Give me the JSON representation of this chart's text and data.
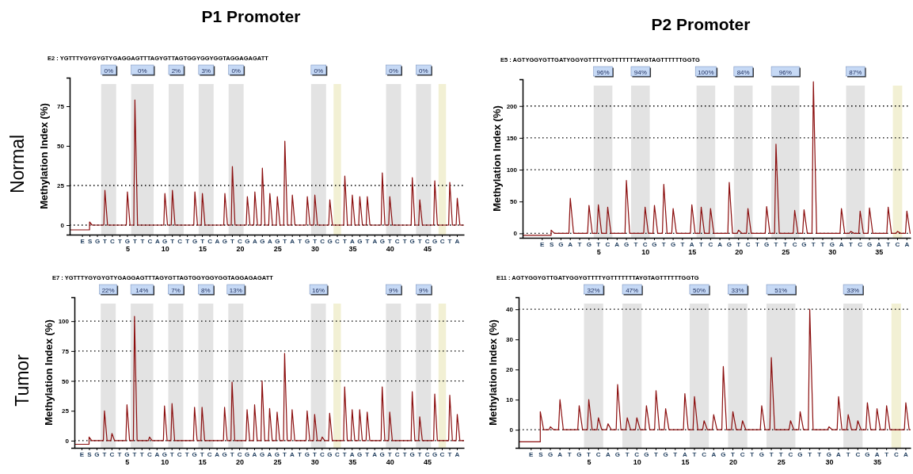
{
  "chart_data": [
    {
      "type": "line",
      "title": "P1 Promoter",
      "subtitle": "E2 : YGTTTYGYGYGTYGAGGAGTTTAGYGTTAGTGGYGGYGGTAGGAGAGATT",
      "ylabel": "Methylation Index (%)",
      "annotations": [
        "E S G T C T G T T C A G T C T G T C A G T C G A G A G T A T G T C G C T A G T A G T C T G T C G C T A",
        "Normal"
      ],
      "xlim": [
        -2.7,
        49.9
      ],
      "ylim": [
        -6,
        93
      ],
      "yticks": [
        0,
        25,
        50,
        75
      ],
      "xticks": [
        5,
        10,
        15,
        20,
        25,
        30,
        35,
        40,
        45
      ],
      "bands": [
        {
          "axis": "x",
          "from": 1.5,
          "to": 3.5,
          "label": "0%",
          "color": "#e3e3e3"
        },
        {
          "axis": "x",
          "from": 5.5,
          "to": 8.5,
          "label": "0%",
          "color": "#e3e3e3"
        },
        {
          "axis": "x",
          "from": 10.5,
          "to": 12.5,
          "label": "2%",
          "color": "#e3e3e3"
        },
        {
          "axis": "x",
          "from": 14.5,
          "to": 16.5,
          "label": "3%",
          "color": "#e3e3e3"
        },
        {
          "axis": "x",
          "from": 18.5,
          "to": 20.5,
          "label": "0%",
          "color": "#e3e3e3"
        },
        {
          "axis": "x",
          "from": 29.5,
          "to": 31.5,
          "label": "0%",
          "color": "#e3e3e3"
        },
        {
          "axis": "x",
          "from": 32.5,
          "to": 33.5,
          "color": "#f2f0d4"
        },
        {
          "axis": "x",
          "from": 39.5,
          "to": 41.5,
          "label": "0%",
          "color": "#e3e3e3"
        },
        {
          "axis": "x",
          "from": 43.5,
          "to": 45.5,
          "label": "0%",
          "color": "#e3e3e3"
        },
        {
          "axis": "x",
          "from": 46.5,
          "to": 47.5,
          "color": "#f2f0d4"
        }
      ],
      "ref_lines": [
        {
          "axis": "y",
          "value": 0,
          "color": "#000000",
          "line_style": "dotted"
        },
        {
          "axis": "y",
          "value": 25,
          "color": "#000000",
          "line_style": "dotted"
        }
      ],
      "series": [
        {
          "color": "#8b0e0e",
          "x": [
            -2.7,
            -0.05,
            -0.05,
            0.3,
            1.85,
            2,
            2.35,
            4.85,
            5,
            5.35,
            5.85,
            6,
            6.35,
            9.85,
            10,
            10.35,
            10.85,
            11,
            11.35,
            13.85,
            14,
            14.35,
            14.85,
            15,
            15.35,
            17.85,
            18,
            18.35,
            18.85,
            19,
            19.35,
            20.85,
            21,
            21.35,
            21.85,
            22,
            22.35,
            22.85,
            23,
            23.35,
            23.85,
            24,
            24.35,
            24.85,
            25,
            25.35,
            25.85,
            26,
            26.35,
            26.85,
            27,
            27.35,
            28.85,
            29,
            29.35,
            29.85,
            30,
            30.35,
            31.85,
            32,
            32.35,
            33.85,
            34,
            34.35,
            34.85,
            35,
            35.35,
            35.85,
            36,
            36.35,
            36.85,
            37,
            37.35,
            38.85,
            39,
            39.35,
            39.85,
            40,
            40.35,
            42.85,
            43,
            43.35,
            43.85,
            44,
            44.35,
            45.85,
            46,
            46.35,
            47.85,
            48,
            48.35,
            48.85,
            49,
            49.35,
            49.9
          ],
          "values": [
            -3,
            -3,
            2,
            0,
            0,
            22,
            0,
            0,
            21,
            0,
            0,
            79,
            0,
            0,
            20,
            0,
            0,
            22,
            0,
            0,
            21,
            0,
            0,
            20,
            0,
            0,
            20,
            0,
            0,
            37,
            0,
            0,
            18,
            0,
            0,
            21,
            0,
            0,
            36,
            0,
            0,
            20,
            0,
            0,
            18,
            0,
            0,
            53,
            0,
            0,
            19,
            0,
            0,
            18,
            0,
            0,
            19,
            0,
            0,
            16,
            0,
            0,
            31,
            0,
            0,
            19,
            0,
            0,
            18,
            0,
            0,
            18,
            0,
            0,
            33,
            0,
            0,
            18,
            0,
            0,
            30,
            0,
            0,
            16,
            0,
            0,
            28,
            0,
            0,
            27,
            0,
            0,
            17,
            0,
            0
          ]
        }
      ]
    },
    {
      "type": "line",
      "title": "P2 Promoter",
      "subtitle": "E5 : AGTYGGYGTTGATYGGYGTTTTYGTTTTTTTAYGTAGTTTTTTGGTG",
      "ylabel": "Methylation Index (%)",
      "annotations": [
        "E S G A T G T C A G T C G T G T A T C A G T C T G T T C G T T G A T C G A T C A"
      ],
      "xlim": [
        -3.1,
        38.4
      ],
      "ylim": [
        -7,
        242
      ],
      "yticks": [
        0,
        50,
        100,
        150,
        200
      ],
      "xticks": [
        5,
        10,
        15,
        20,
        25,
        30,
        35
      ],
      "bands": [
        {
          "axis": "x",
          "from": 4.5,
          "to": 6.5,
          "label": "96%",
          "color": "#e3e3e3"
        },
        {
          "axis": "x",
          "from": 8.5,
          "to": 10.5,
          "label": "94%",
          "color": "#e3e3e3"
        },
        {
          "axis": "x",
          "from": 15.5,
          "to": 17.5,
          "label": "100%",
          "color": "#e3e3e3"
        },
        {
          "axis": "x",
          "from": 19.5,
          "to": 21.5,
          "label": "84%",
          "color": "#e3e3e3"
        },
        {
          "axis": "x",
          "from": 23.5,
          "to": 26.5,
          "label": "96%",
          "color": "#e3e3e3"
        },
        {
          "axis": "x",
          "from": 31.5,
          "to": 33.5,
          "label": "87%",
          "color": "#e3e3e3"
        },
        {
          "axis": "x",
          "from": 36.5,
          "to": 37.5,
          "color": "#f2f0d4"
        }
      ],
      "ref_lines": [
        {
          "axis": "y",
          "value": 0,
          "color": "#000000",
          "line_style": "dotted"
        },
        {
          "axis": "y",
          "value": 100,
          "color": "#000000",
          "line_style": "dotted"
        },
        {
          "axis": "y",
          "value": 150,
          "color": "#000000",
          "line_style": "dotted"
        },
        {
          "axis": "y",
          "value": 200,
          "color": "#000000",
          "line_style": "dotted"
        }
      ],
      "series": [
        {
          "color": "#8b0e0e",
          "x": [
            -3.1,
            -0.05,
            -0.05,
            0.3,
            1.85,
            2,
            2.35,
            3.85,
            4,
            4.35,
            4.85,
            5,
            5.35,
            5.85,
            6,
            6.35,
            7.85,
            8,
            8.35,
            9.85,
            10,
            10.35,
            10.85,
            11,
            11.35,
            11.85,
            12,
            12.35,
            12.85,
            13,
            13.35,
            14.85,
            15,
            15.35,
            15.85,
            16,
            16.35,
            16.85,
            17,
            17.35,
            18.85,
            19,
            19.35,
            19.85,
            20,
            20.35,
            20.85,
            21,
            21.35,
            22.85,
            23,
            23.35,
            23.85,
            24,
            24.35,
            25.85,
            26,
            26.35,
            26.85,
            27,
            27.35,
            27.85,
            28,
            28.35,
            30.85,
            31,
            31.35,
            31.85,
            32,
            32.35,
            32.85,
            33,
            33.35,
            33.85,
            34,
            34.35,
            35.85,
            36,
            36.35,
            36.85,
            37,
            37.35,
            37.85,
            38,
            38.35,
            38.4
          ],
          "values": [
            -3,
            -3,
            5,
            0,
            0,
            55,
            0,
            0,
            44,
            0,
            0,
            45,
            0,
            0,
            41,
            0,
            0,
            83,
            0,
            0,
            41,
            0,
            0,
            44,
            0,
            0,
            77,
            0,
            0,
            39,
            0,
            0,
            45,
            0,
            0,
            41,
            0,
            0,
            39,
            0,
            0,
            80,
            0,
            0,
            5,
            0,
            0,
            39,
            0,
            0,
            42,
            0,
            0,
            140,
            0,
            0,
            36,
            0,
            0,
            37,
            0,
            0,
            238,
            0,
            0,
            39,
            0,
            0,
            3,
            0,
            0,
            35,
            0,
            0,
            40,
            0,
            0,
            41,
            0,
            0,
            3,
            0,
            0,
            35,
            0,
            0
          ]
        }
      ]
    },
    {
      "type": "line",
      "subtitle": "E7 : YGTTTYGYGYGTYGAGGAGTTTAGYGTTAGTGGYGGYGGTAGGAGAGATT",
      "ylabel": "Methylation Index (%)",
      "annotations": [
        "E S G T C T G T T C A G T C T G T C A G T C G A G A G T A T G T C G C T A G T A G T C T G T C G C T A",
        "Tumor"
      ],
      "xlim": [
        -2,
        49.9
      ],
      "ylim": [
        -6,
        120
      ],
      "yticks": [
        0,
        25,
        50,
        75,
        100
      ],
      "xticks": [
        5,
        10,
        15,
        20,
        25,
        30,
        35,
        40,
        45
      ],
      "bands": [
        {
          "axis": "x",
          "from": 1.5,
          "to": 3.5,
          "label": "22%",
          "color": "#e3e3e3"
        },
        {
          "axis": "x",
          "from": 5.5,
          "to": 8.5,
          "label": "14%",
          "color": "#e3e3e3"
        },
        {
          "axis": "x",
          "from": 10.5,
          "to": 12.5,
          "label": "7%",
          "color": "#e3e3e3"
        },
        {
          "axis": "x",
          "from": 14.5,
          "to": 16.5,
          "label": "8%",
          "color": "#e3e3e3"
        },
        {
          "axis": "x",
          "from": 18.5,
          "to": 20.5,
          "label": "13%",
          "color": "#e3e3e3"
        },
        {
          "axis": "x",
          "from": 29.5,
          "to": 31.5,
          "label": "16%",
          "color": "#e3e3e3"
        },
        {
          "axis": "x",
          "from": 32.5,
          "to": 33.5,
          "color": "#f2f0d4"
        },
        {
          "axis": "x",
          "from": 39.5,
          "to": 41.5,
          "label": "9%",
          "color": "#e3e3e3"
        },
        {
          "axis": "x",
          "from": 43.5,
          "to": 45.5,
          "label": "9%",
          "color": "#e3e3e3"
        },
        {
          "axis": "x",
          "from": 46.5,
          "to": 47.5,
          "color": "#f2f0d4"
        }
      ],
      "ref_lines": [
        {
          "axis": "y",
          "value": 0,
          "color": "#000000",
          "line_style": "dotted"
        },
        {
          "axis": "y",
          "value": 50,
          "color": "#000000",
          "line_style": "dotted"
        },
        {
          "axis": "y",
          "value": 75,
          "color": "#000000",
          "line_style": "dotted"
        },
        {
          "axis": "y",
          "value": 100,
          "color": "#000000",
          "line_style": "dotted"
        }
      ],
      "series": [
        {
          "color": "#8b0e0e",
          "x": [
            -2,
            -0.05,
            -0.05,
            0.3,
            1.85,
            2,
            2.35,
            2.85,
            3,
            3.35,
            4.85,
            5,
            5.35,
            5.85,
            6,
            6.35,
            7.85,
            8,
            8.35,
            9.85,
            10,
            10.35,
            10.85,
            11,
            11.35,
            13.85,
            14,
            14.35,
            14.85,
            15,
            15.35,
            17.85,
            18,
            18.35,
            18.85,
            19,
            19.35,
            20.85,
            21,
            21.35,
            21.85,
            22,
            22.35,
            22.85,
            23,
            23.35,
            23.85,
            24,
            24.35,
            24.85,
            25,
            25.35,
            25.85,
            26,
            26.35,
            26.85,
            27,
            27.35,
            28.85,
            29,
            29.35,
            29.85,
            30,
            30.35,
            30.85,
            31,
            31.35,
            31.85,
            32,
            32.35,
            33.85,
            34,
            34.35,
            34.85,
            35,
            35.35,
            35.85,
            36,
            36.35,
            36.85,
            37,
            37.35,
            38.85,
            39,
            39.35,
            39.85,
            40,
            40.35,
            42.85,
            43,
            43.35,
            43.85,
            44,
            44.35,
            45.85,
            46,
            46.35,
            47.85,
            48,
            48.35,
            48.85,
            49,
            49.35,
            49.9
          ],
          "values": [
            -3,
            -3,
            3,
            0,
            0,
            25,
            0,
            0,
            6,
            0,
            0,
            30,
            0,
            0,
            104,
            0,
            0,
            3,
            0,
            0,
            29,
            0,
            0,
            31,
            0,
            0,
            28,
            0,
            0,
            28,
            0,
            0,
            28,
            0,
            0,
            49,
            0,
            0,
            26,
            0,
            0,
            30,
            0,
            0,
            50,
            0,
            0,
            27,
            0,
            0,
            24,
            0,
            0,
            73,
            0,
            0,
            26,
            0,
            0,
            25,
            0,
            0,
            22,
            0,
            0,
            3,
            0,
            0,
            23,
            0,
            0,
            45,
            0,
            0,
            26,
            0,
            0,
            26,
            0,
            0,
            24,
            0,
            0,
            45,
            0,
            0,
            24,
            0,
            0,
            41,
            0,
            0,
            20,
            0,
            0,
            39,
            0,
            0,
            38,
            0,
            0,
            22,
            0,
            0
          ]
        }
      ]
    },
    {
      "type": "line",
      "subtitle": "E11 : AGTYGGYGTTGATYGGYGTTTTYGTTTTTTTAYGTAGTTTTTTGGTG",
      "ylabel": "Methylation Index (%)",
      "annotations": [
        "E S G A T G T C A G T C G T G T A T C A G T C T G T T C G T T G A T C G A T C A"
      ],
      "xlim": [
        -2.3,
        38.5
      ],
      "ylim": [
        -6,
        44
      ],
      "yticks": [
        0,
        10,
        20,
        30,
        40
      ],
      "xticks": [
        5,
        10,
        15,
        20,
        25,
        30,
        35
      ],
      "bands": [
        {
          "axis": "x",
          "from": 4.5,
          "to": 6.5,
          "label": "32%",
          "color": "#e3e3e3"
        },
        {
          "axis": "x",
          "from": 8.5,
          "to": 10.5,
          "label": "47%",
          "color": "#e3e3e3"
        },
        {
          "axis": "x",
          "from": 15.5,
          "to": 17.5,
          "label": "50%",
          "color": "#e3e3e3"
        },
        {
          "axis": "x",
          "from": 19.5,
          "to": 21.5,
          "label": "33%",
          "color": "#e3e3e3"
        },
        {
          "axis": "x",
          "from": 23.5,
          "to": 26.5,
          "label": "51%",
          "color": "#e3e3e3"
        },
        {
          "axis": "x",
          "from": 31.5,
          "to": 33.5,
          "label": "33%",
          "color": "#e3e3e3"
        },
        {
          "axis": "x",
          "from": 36.5,
          "to": 37.5,
          "color": "#f2f0d4"
        }
      ],
      "ref_lines": [
        {
          "axis": "y",
          "value": 0,
          "color": "#000000",
          "line_style": "dotted"
        },
        {
          "axis": "y",
          "value": 40,
          "color": "#000000",
          "line_style": "dotted"
        }
      ],
      "series": [
        {
          "color": "#8b0e0e",
          "x": [
            -2.3,
            -0.05,
            -0.05,
            0.3,
            0.85,
            1,
            1.35,
            1.85,
            2,
            2.35,
            3.85,
            4,
            4.35,
            4.85,
            5,
            5.35,
            5.85,
            6,
            6.35,
            6.85,
            7,
            7.35,
            7.85,
            8,
            8.35,
            8.85,
            9,
            9.35,
            9.85,
            10,
            10.35,
            10.85,
            11,
            11.35,
            11.85,
            12,
            12.35,
            12.85,
            13,
            13.35,
            14.85,
            15,
            15.35,
            15.85,
            16,
            16.35,
            16.85,
            17,
            17.35,
            17.85,
            18,
            18.35,
            18.85,
            19,
            19.35,
            19.85,
            20,
            20.35,
            20.85,
            21,
            21.35,
            22.85,
            23,
            23.35,
            23.85,
            24,
            24.35,
            25.85,
            26,
            26.35,
            26.85,
            27,
            27.35,
            27.85,
            28,
            28.35,
            29.85,
            30,
            30.35,
            30.85,
            31,
            31.35,
            31.85,
            32,
            32.35,
            32.85,
            33,
            33.35,
            33.85,
            34,
            34.35,
            34.85,
            35,
            35.35,
            35.85,
            36,
            36.35,
            37.85,
            38,
            38.35,
            38.5
          ],
          "values": [
            -4,
            -4,
            6,
            0,
            0,
            1,
            0,
            0,
            10,
            0,
            0,
            8,
            0,
            0,
            10,
            0,
            0,
            4,
            0,
            0,
            2,
            0,
            0,
            15,
            0,
            0,
            4,
            0,
            0,
            4,
            0,
            0,
            8,
            0,
            0,
            13,
            0,
            0,
            7,
            0,
            0,
            12,
            0,
            0,
            11,
            0,
            0,
            3,
            0,
            0,
            5,
            0,
            0,
            21,
            0,
            0,
            6,
            0,
            0,
            3,
            0,
            0,
            8,
            0,
            0,
            24,
            0,
            0,
            3,
            0,
            0,
            6,
            0,
            0,
            40,
            0,
            0,
            1,
            0,
            0,
            11,
            0,
            0,
            5,
            0,
            0,
            3,
            0,
            0,
            9,
            0,
            0,
            7,
            0,
            0,
            8,
            0,
            0,
            9,
            0,
            0
          ]
        }
      ]
    }
  ]
}
